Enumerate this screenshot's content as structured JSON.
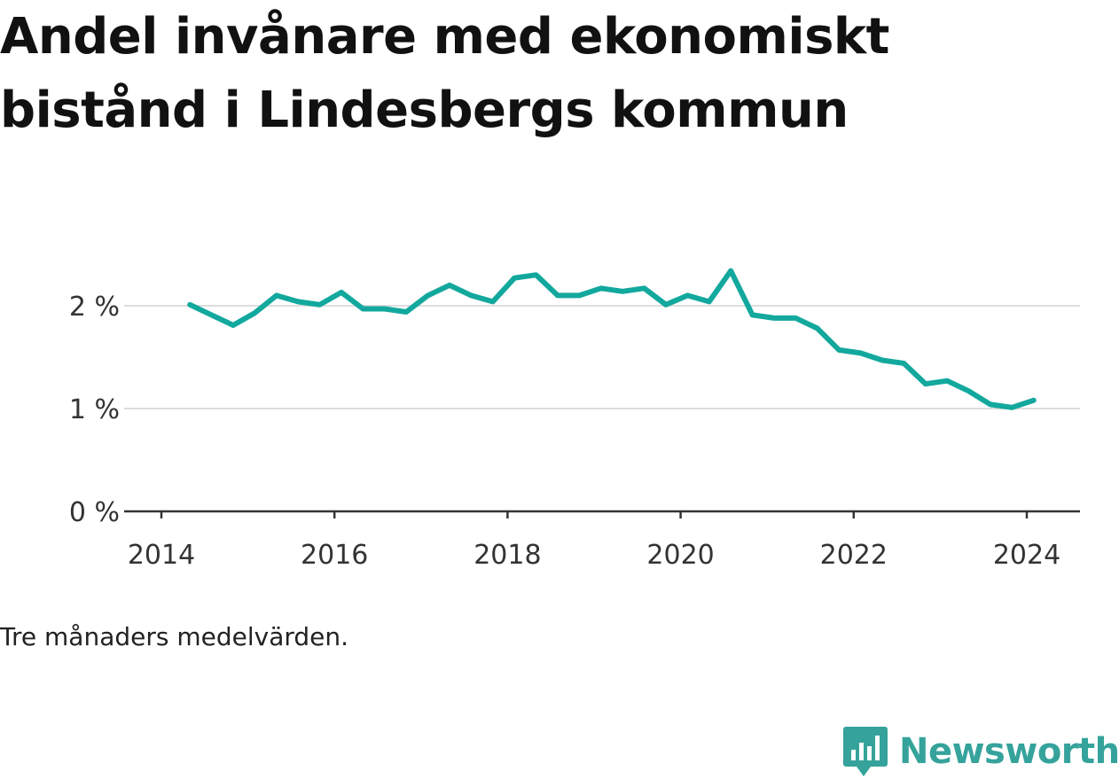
{
  "title": "Andel invånare med ekonomiskt bistånd i Lindesbergs kommun",
  "note": "Tre månaders medelvärden.",
  "brand": {
    "name": "Newsworthy",
    "icon": "newsworthy-chart-logo-icon",
    "color": "#35a39b"
  },
  "chart_data": {
    "type": "line",
    "title": "Andel invånare med ekonomiskt bistånd i Lindesbergs kommun",
    "xlabel": "",
    "ylabel": "",
    "xlim": [
      2014.0,
      2024.25
    ],
    "ylim": [
      0,
      2.3
    ],
    "x_ticks": [
      2014,
      2016,
      2018,
      2020,
      2022,
      2024
    ],
    "x_tick_labels": [
      "2014",
      "2016",
      "2018",
      "2020",
      "2022",
      "2024"
    ],
    "y_ticks": [
      0,
      1,
      2
    ],
    "y_tick_labels": [
      "0 %",
      "1 %",
      "2 %"
    ],
    "grid": "horizontal",
    "line_color": "#13a89e",
    "series": [
      {
        "x": [
          2014.33,
          2014.58,
          2014.83,
          2015.08,
          2015.33,
          2015.58,
          2015.83,
          2016.08,
          2016.33,
          2016.58,
          2016.83,
          2017.08,
          2017.33,
          2017.58,
          2017.83,
          2018.08,
          2018.33,
          2018.58,
          2018.83,
          2019.08,
          2019.33,
          2019.58,
          2019.83,
          2020.08,
          2020.33,
          2020.58,
          2020.83,
          2021.08,
          2021.33,
          2021.58,
          2021.83,
          2022.08,
          2022.33,
          2022.58,
          2022.83,
          2023.08,
          2023.33,
          2023.58,
          2023.83,
          2024.08
        ],
        "values": [
          2.01,
          1.91,
          1.81,
          1.93,
          2.1,
          2.04,
          2.01,
          2.13,
          1.97,
          1.97,
          1.94,
          2.1,
          2.2,
          2.1,
          2.04,
          2.27,
          2.3,
          2.1,
          2.1,
          2.17,
          2.14,
          2.17,
          2.01,
          2.1,
          2.04,
          2.34,
          1.91,
          1.88,
          1.88,
          1.78,
          1.57,
          1.54,
          1.47,
          1.44,
          1.24,
          1.27,
          1.17,
          1.04,
          1.01,
          1.08
        ]
      }
    ]
  }
}
